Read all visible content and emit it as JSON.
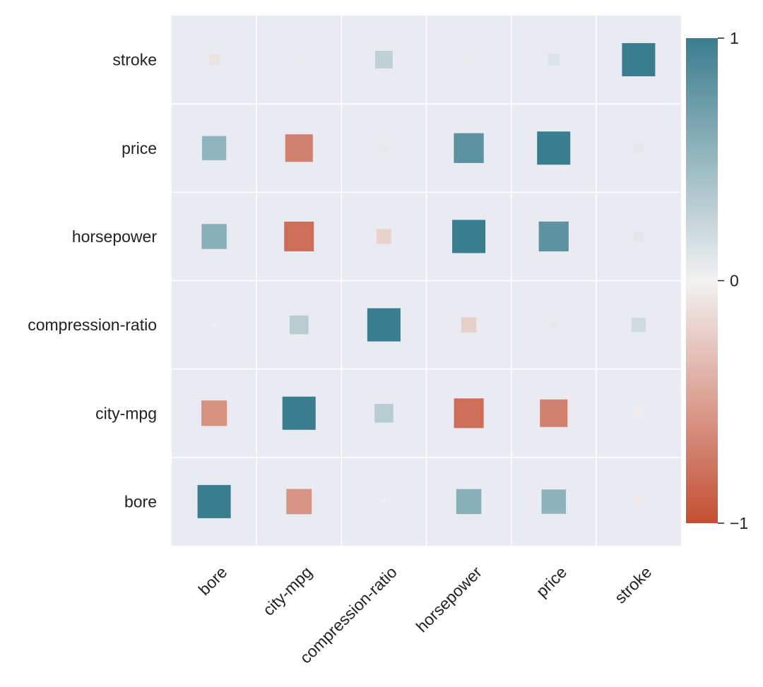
{
  "chart_data": {
    "type": "heatmap",
    "title": "",
    "xlabel": "",
    "ylabel": "",
    "x_labels": [
      "bore",
      "city-mpg",
      "compression-ratio",
      "horsepower",
      "price",
      "stroke"
    ],
    "y_labels_top_to_bottom": [
      "stroke",
      "price",
      "horsepower",
      "compression-ratio",
      "city-mpg",
      "bore"
    ],
    "matrix_top_to_bottom": [
      [
        -0.1,
        0.06,
        0.28,
        0.06,
        0.13,
        1.0
      ],
      [
        0.53,
        -0.69,
        0.07,
        0.81,
        1.0,
        0.08
      ],
      [
        0.57,
        -0.8,
        -0.2,
        1.0,
        0.81,
        0.09
      ],
      [
        0.01,
        0.32,
        1.0,
        -0.21,
        0.07,
        0.19
      ],
      [
        -0.59,
        1.0,
        0.32,
        -0.8,
        -0.69,
        -0.04
      ],
      [
        1.0,
        -0.58,
        0.01,
        0.57,
        0.54,
        -0.06
      ]
    ],
    "vmin": -1,
    "vmax": 1,
    "marker": "square",
    "marker_size_encodes": "abs(value)",
    "colormap": {
      "negative": "#c44e32",
      "zero": "#f2f2f2",
      "positive": "#3a7d8e"
    },
    "colorbar": {
      "ticks": [
        1,
        0,
        -1
      ],
      "tick_labels": [
        "1",
        "0",
        "−1"
      ]
    },
    "background": "#eaeaf2",
    "grid_color": "#ffffff"
  }
}
